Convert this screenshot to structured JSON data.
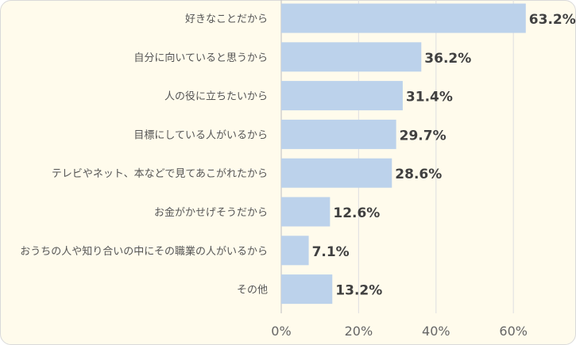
{
  "chart_data": {
    "type": "bar",
    "orientation": "horizontal",
    "categories": [
      "好きなことだから",
      "自分に向いていると思うから",
      "人の役に立ちたいから",
      "目標にしている人がいるから",
      "テレビやネット、本などで見てあこがれたから",
      "お金がかせげそうだから",
      "おうちの人や知り合いの中にその職業の人がいるから",
      "その他"
    ],
    "values": [
      63.2,
      36.2,
      31.4,
      29.7,
      28.6,
      12.6,
      7.1,
      13.2
    ],
    "value_labels": [
      "63.2%",
      "36.2%",
      "31.4%",
      "29.7%",
      "28.6%",
      "12.6%",
      "7.1%",
      "13.2%"
    ],
    "x_ticks": [
      0,
      20,
      40,
      60
    ],
    "x_tick_labels": [
      "0%",
      "20%",
      "40%",
      "60%"
    ],
    "xlim": [
      0,
      75
    ],
    "grid": "vertical",
    "bar_color": "#bcd2eb",
    "background_color": "#fffbec"
  }
}
